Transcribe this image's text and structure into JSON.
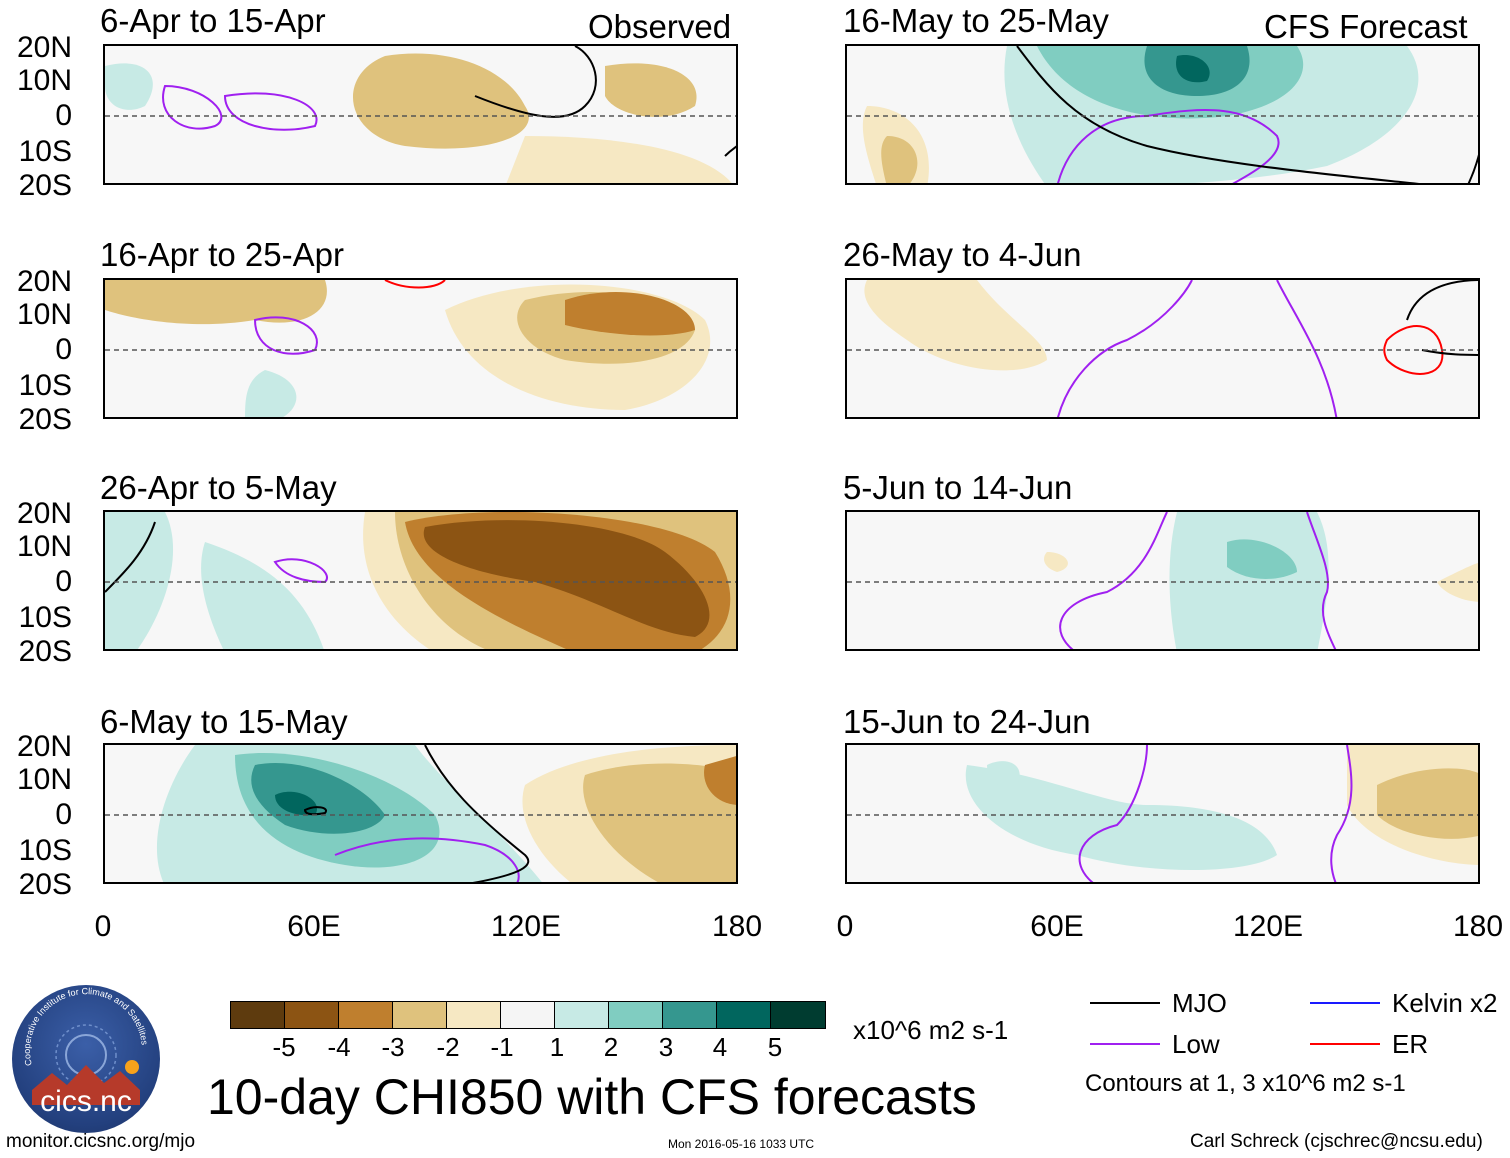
{
  "header": {
    "observed_label": "Observed",
    "forecast_label": "CFS Forecast"
  },
  "axes": {
    "y_labels": [
      "20N",
      "10N",
      "0",
      "10S",
      "20S"
    ],
    "x_labels": [
      "0",
      "60E",
      "120E",
      "180"
    ]
  },
  "panels": {
    "left": [
      {
        "title": "6-Apr to 15-Apr"
      },
      {
        "title": "16-Apr to 25-Apr"
      },
      {
        "title": "26-Apr to 5-May"
      },
      {
        "title": "6-May to 15-May"
      }
    ],
    "right": [
      {
        "title": "16-May to 25-May"
      },
      {
        "title": "26-May to 4-Jun"
      },
      {
        "title": "5-Jun to 14-Jun"
      },
      {
        "title": "15-Jun to 24-Jun"
      }
    ]
  },
  "colorbar": {
    "labels": [
      "-5",
      "-4",
      "-3",
      "-2",
      "-1",
      "1",
      "2",
      "3",
      "4",
      "5"
    ],
    "colors": [
      "#5e3b0e",
      "#8c5413",
      "#bf7f2e",
      "#dfc27d",
      "#f6e8c3",
      "#f5f5f5",
      "#c7eae5",
      "#80cdc1",
      "#35978f",
      "#01665e",
      "#003c30"
    ],
    "units": "x10^6 m2 s-1"
  },
  "title": "10-day CHI850 with CFS forecasts",
  "legend": {
    "items": [
      {
        "label": "MJO",
        "color": "#000000"
      },
      {
        "label": "Kelvin x2",
        "color": "#1a1aff"
      },
      {
        "label": "Low",
        "color": "#a020f0"
      },
      {
        "label": "ER",
        "color": "#ff0000"
      }
    ],
    "note": "Contours at 1, 3 x10^6 m2 s-1"
  },
  "logo": {
    "text": "cics.nc",
    "ring_text": "Cooperative Institute for Climate and Satellites"
  },
  "footer": {
    "url": "monitor.cicsnc.org/mjo",
    "timestamp": "Mon 2016-05-16 1033 UTC",
    "author": "Carl Schreck (cjschrec@ncsu.edu)"
  }
}
